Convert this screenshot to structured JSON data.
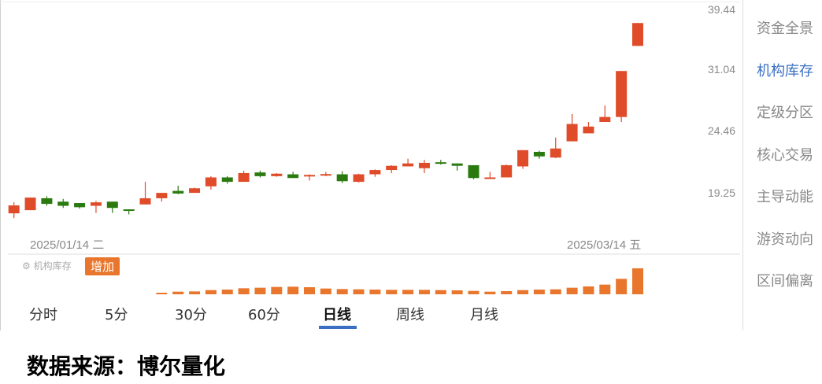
{
  "chart_data": {
    "type": "candlestick",
    "y_scale": "log",
    "y_ticks": [
      "39.44",
      "31.04",
      "24.46",
      "19.25"
    ],
    "x_labels": [
      "2025/01/14 二",
      "2025/03/14 五"
    ],
    "colors": {
      "up": "#e04b2a",
      "down": "#2a7a10",
      "volume": "#e8762d"
    },
    "candles": [
      {
        "o": 17.77,
        "h": 18.56,
        "l": 17.44,
        "c": 18.33
      },
      {
        "o": 17.99,
        "h": 18.9,
        "l": 17.99,
        "c": 18.9
      },
      {
        "o": 18.85,
        "h": 19.0,
        "l": 18.3,
        "c": 18.44
      },
      {
        "o": 18.6,
        "h": 18.8,
        "l": 18.15,
        "c": 18.3
      },
      {
        "o": 18.5,
        "h": 18.5,
        "l": 18.1,
        "c": 18.2
      },
      {
        "o": 18.3,
        "h": 18.65,
        "l": 17.8,
        "c": 18.55
      },
      {
        "o": 18.6,
        "h": 18.6,
        "l": 17.8,
        "c": 18.15
      },
      {
        "o": 18.05,
        "h": 18.05,
        "l": 17.7,
        "c": 17.95
      },
      {
        "o": 18.4,
        "h": 20.1,
        "l": 18.4,
        "c": 18.85
      },
      {
        "o": 18.85,
        "h": 19.25,
        "l": 18.6,
        "c": 19.25
      },
      {
        "o": 19.4,
        "h": 19.8,
        "l": 19.15,
        "c": 19.2
      },
      {
        "o": 19.25,
        "h": 19.65,
        "l": 19.25,
        "c": 19.6
      },
      {
        "o": 19.75,
        "h": 20.55,
        "l": 19.5,
        "c": 20.45
      },
      {
        "o": 20.45,
        "h": 20.55,
        "l": 19.95,
        "c": 20.1
      },
      {
        "o": 20.1,
        "h": 21.0,
        "l": 20.1,
        "c": 20.8
      },
      {
        "o": 20.85,
        "h": 21.0,
        "l": 20.45,
        "c": 20.55
      },
      {
        "o": 20.55,
        "h": 20.8,
        "l": 20.5,
        "c": 20.75
      },
      {
        "o": 20.7,
        "h": 20.9,
        "l": 20.4,
        "c": 20.4
      },
      {
        "o": 20.55,
        "h": 20.7,
        "l": 20.2,
        "c": 20.65
      },
      {
        "o": 20.65,
        "h": 20.9,
        "l": 20.55,
        "c": 20.72
      },
      {
        "o": 20.7,
        "h": 20.95,
        "l": 20.0,
        "c": 20.15
      },
      {
        "o": 20.1,
        "h": 20.75,
        "l": 20.05,
        "c": 20.7
      },
      {
        "o": 20.7,
        "h": 21.1,
        "l": 20.5,
        "c": 21.05
      },
      {
        "o": 21.05,
        "h": 21.45,
        "l": 20.8,
        "c": 21.4
      },
      {
        "o": 21.35,
        "h": 22.0,
        "l": 21.35,
        "c": 21.6
      },
      {
        "o": 21.2,
        "h": 21.9,
        "l": 20.8,
        "c": 21.65
      },
      {
        "o": 21.7,
        "h": 21.9,
        "l": 21.5,
        "c": 21.65
      },
      {
        "o": 21.6,
        "h": 21.6,
        "l": 21.0,
        "c": 21.4
      },
      {
        "o": 21.45,
        "h": 21.45,
        "l": 20.3,
        "c": 20.4
      },
      {
        "o": 20.35,
        "h": 20.9,
        "l": 20.35,
        "c": 20.45
      },
      {
        "o": 20.45,
        "h": 21.5,
        "l": 20.45,
        "c": 21.45
      },
      {
        "o": 21.35,
        "h": 22.75,
        "l": 21.15,
        "c": 22.75
      },
      {
        "o": 22.6,
        "h": 22.7,
        "l": 22.0,
        "c": 22.2
      },
      {
        "o": 22.1,
        "h": 23.9,
        "l": 22.05,
        "c": 22.9
      },
      {
        "o": 23.55,
        "h": 26.2,
        "l": 23.55,
        "c": 25.2
      },
      {
        "o": 24.3,
        "h": 25.4,
        "l": 24.3,
        "c": 24.95
      },
      {
        "o": 25.4,
        "h": 27.1,
        "l": 25.4,
        "c": 25.9
      },
      {
        "o": 25.9,
        "h": 31.0,
        "l": 25.4,
        "c": 31.0
      },
      {
        "o": 34.2,
        "h": 37.4,
        "l": 34.2,
        "c": 37.4
      }
    ],
    "indicator": {
      "name": "机构库存",
      "badge": "增加",
      "values_start_index": 9,
      "values": [
        6,
        10,
        11,
        16,
        18,
        23,
        25,
        28,
        29,
        27,
        22,
        20,
        19,
        18,
        17,
        17,
        17,
        16,
        15,
        13,
        10,
        12,
        16,
        18,
        19,
        25,
        30,
        37,
        59,
        99
      ]
    }
  },
  "indicator_icon": "gear-icon",
  "tabs": [
    "分时",
    "5分",
    "30分",
    "60分",
    "日线",
    "周线",
    "月线"
  ],
  "active_tab": "日线",
  "sidebar": [
    "资金全景",
    "机构库存",
    "定级分区",
    "核心交易",
    "主导动能",
    "游资动向",
    "区间偏离"
  ],
  "active_sidebar": "机构库存",
  "caption": "数据来源：博尔量化"
}
